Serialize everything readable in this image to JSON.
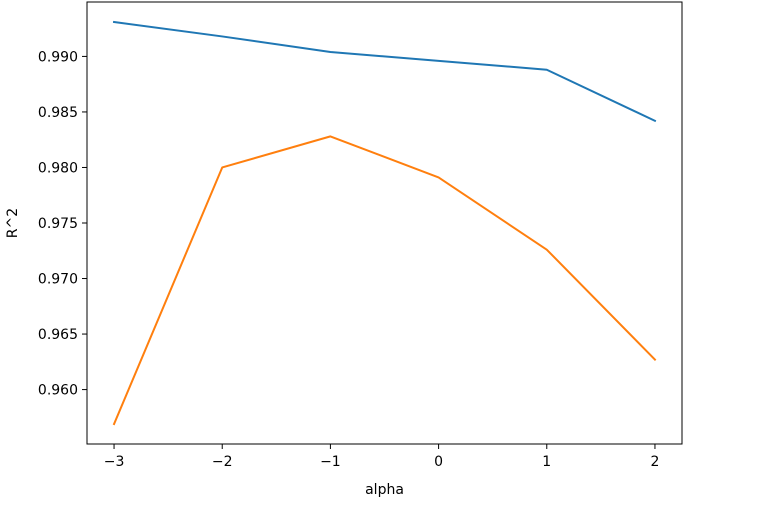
{
  "chart_data": {
    "type": "line",
    "title": "",
    "xlabel": "alpha",
    "ylabel": "R^2",
    "x": [
      -3,
      -2,
      -1,
      0,
      1,
      2
    ],
    "xlim": [
      -3.25,
      2.25
    ],
    "ylim": [
      0.9551,
      0.9949
    ],
    "x_ticks": [
      -3,
      -2,
      -1,
      0,
      1,
      2
    ],
    "x_tick_labels": [
      "−3",
      "−2",
      "−1",
      "0",
      "1",
      "2"
    ],
    "y_ticks": [
      0.96,
      0.965,
      0.97,
      0.975,
      0.98,
      0.985,
      0.99
    ],
    "y_tick_labels": [
      "0.960",
      "0.965",
      "0.970",
      "0.975",
      "0.980",
      "0.985",
      "0.990"
    ],
    "grid": false,
    "legend": "none",
    "series": [
      {
        "color": "#1f77b4",
        "values": [
          0.9931,
          0.9918,
          0.9904,
          0.9896,
          0.9888,
          0.9842
        ]
      },
      {
        "color": "#ff7f0e",
        "values": [
          0.9569,
          0.98,
          0.9828,
          0.9791,
          0.9726,
          0.9627
        ]
      }
    ]
  }
}
